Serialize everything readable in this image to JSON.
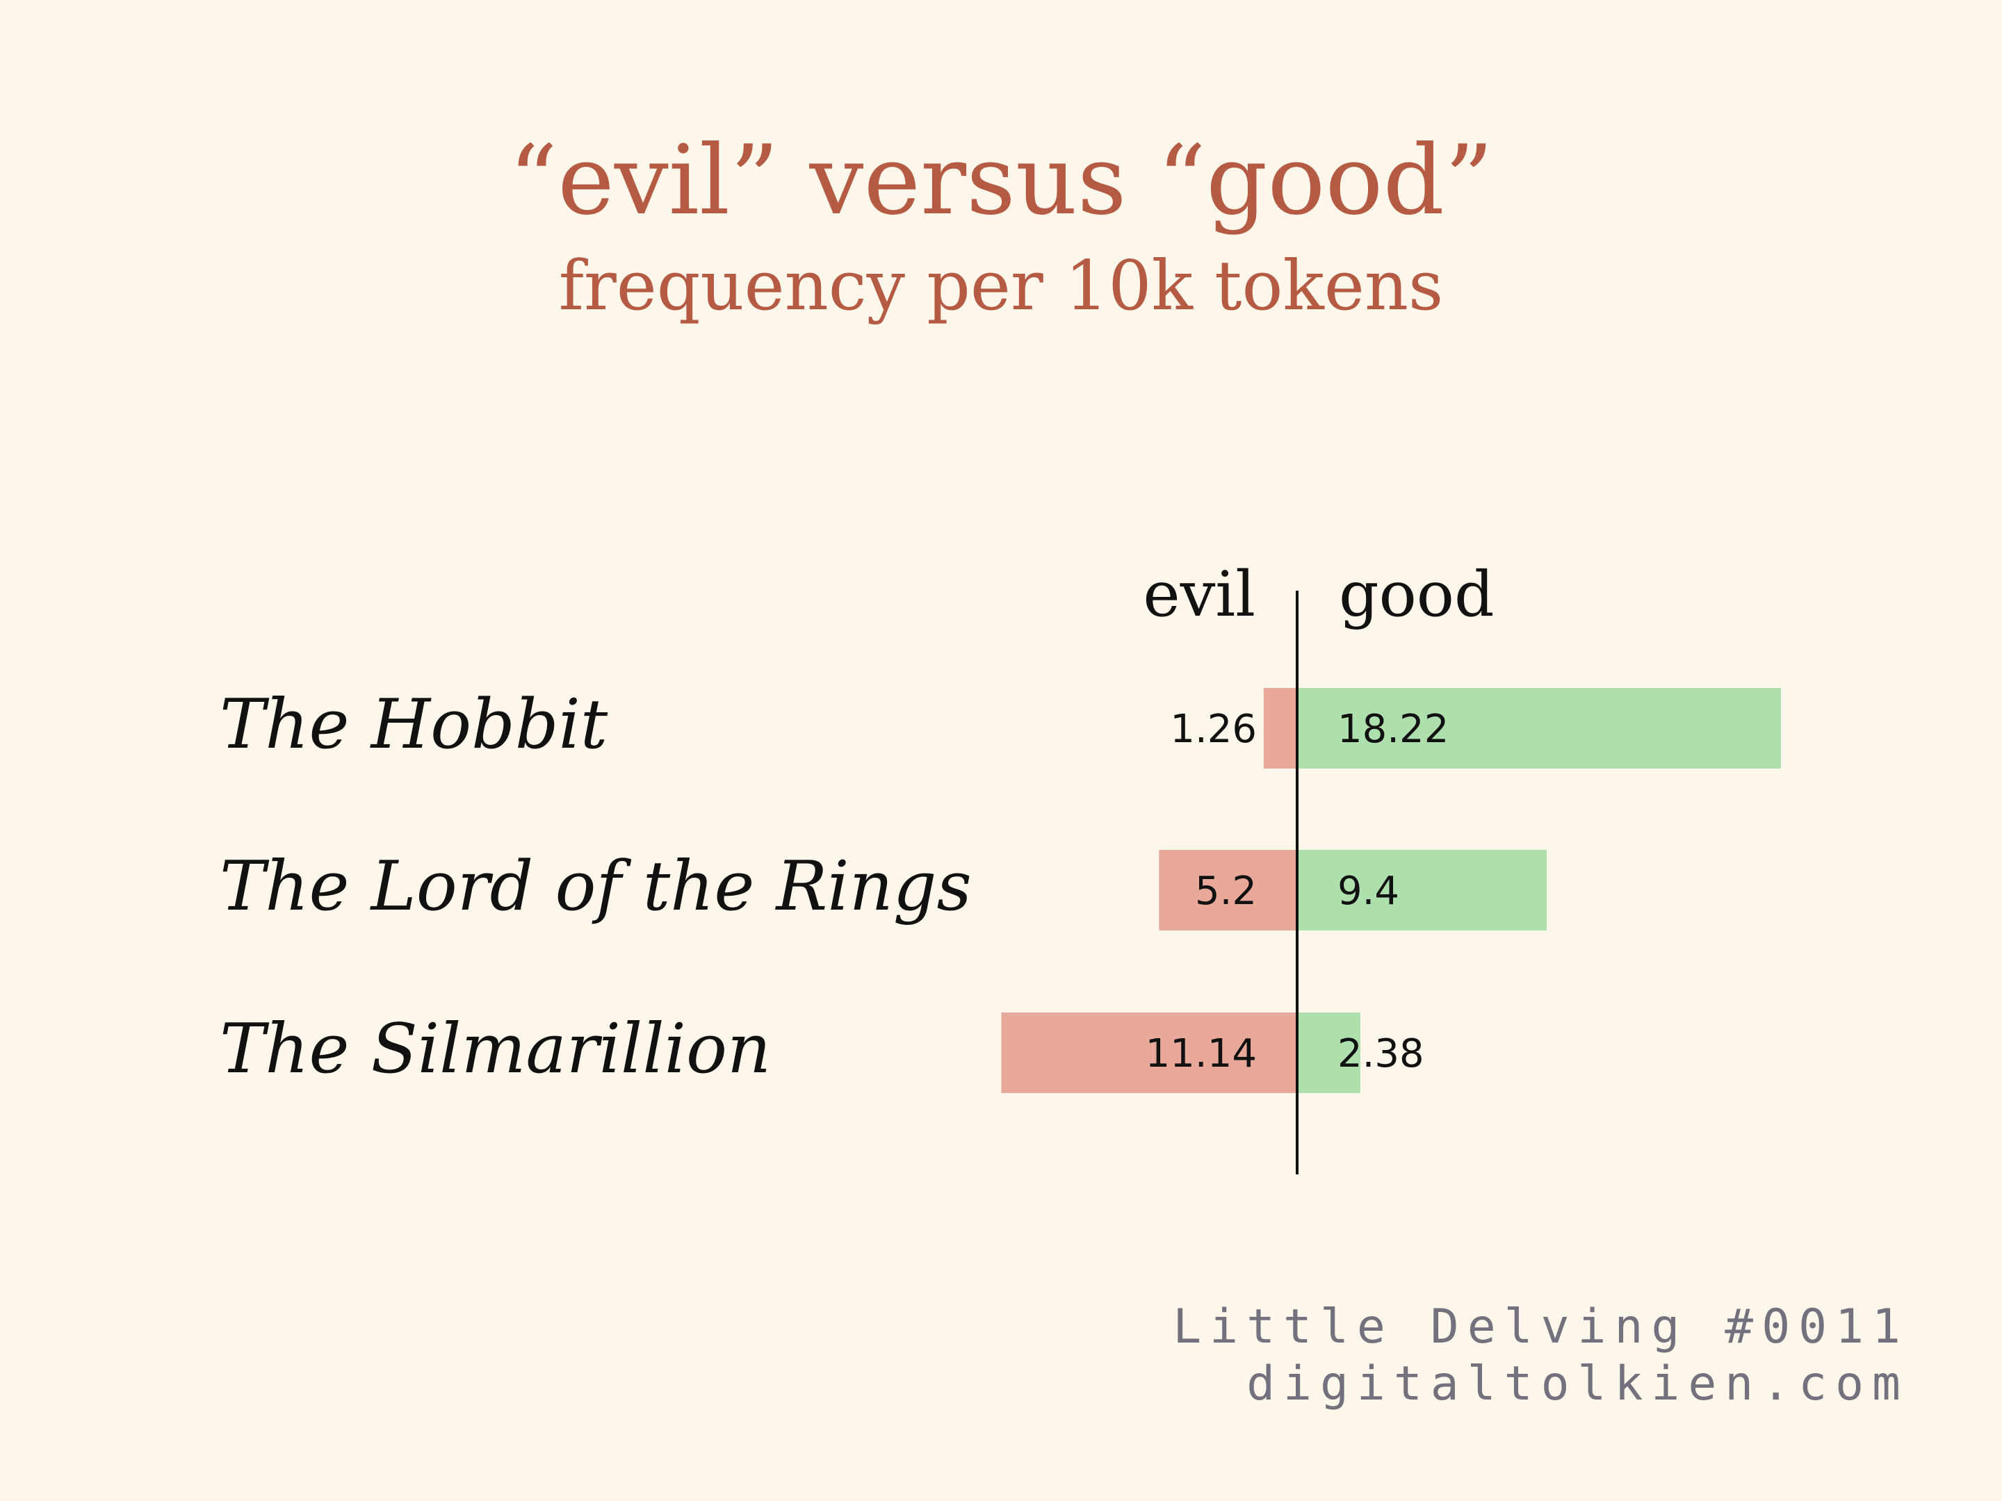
{
  "title": "“evil” versus “good”",
  "subtitle": "frequency per 10k tokens",
  "footer": {
    "line1": "Little Delving #0011",
    "line2": "digitaltolkien.com"
  },
  "colors": {
    "background": "#fdf6ea",
    "title": "#b55a43",
    "evil": "#e8a99a",
    "good": "#aee0ae",
    "text": "#111111",
    "footer": "#72717d"
  },
  "chart_data": {
    "type": "bar",
    "orientation": "horizontal-diverging",
    "title": "“evil” versus “good”",
    "subtitle": "frequency per 10k tokens",
    "categories": [
      "The Hobbit",
      "The Lord of the Rings",
      "The Silmarillion"
    ],
    "series": [
      {
        "name": "evil",
        "values": [
          1.26,
          5.2,
          11.14
        ],
        "color": "#e8a99a",
        "direction": "left"
      },
      {
        "name": "good",
        "values": [
          18.22,
          9.4,
          2.38
        ],
        "color": "#aee0ae",
        "direction": "right"
      }
    ],
    "data_labels": {
      "evil": [
        "1.26",
        "5.2",
        "11.14"
      ],
      "good": [
        "18.22",
        "9.4",
        "2.38"
      ]
    },
    "grid": false,
    "legend": "column headers above bars"
  }
}
